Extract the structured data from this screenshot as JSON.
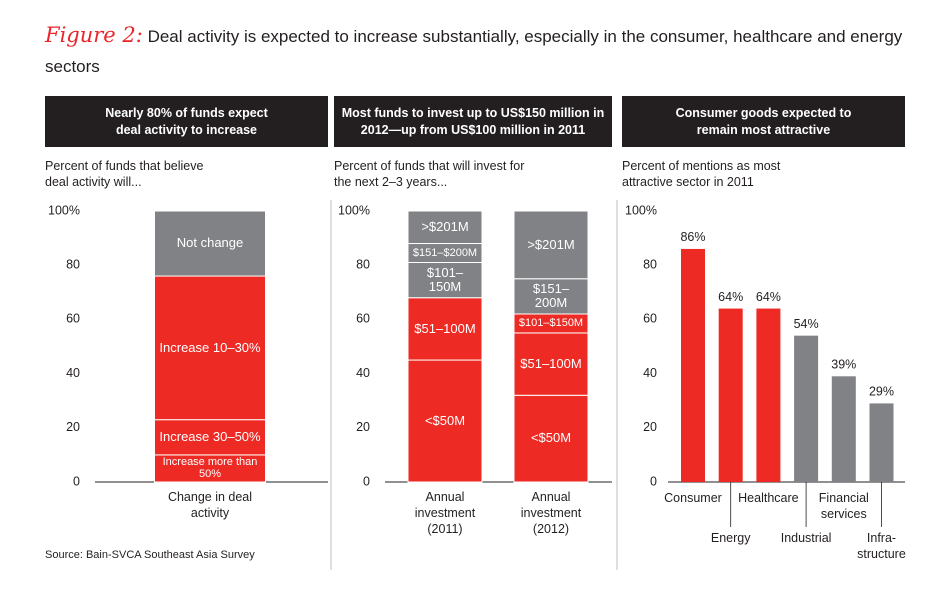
{
  "figure_label": "Figure 2:",
  "title": "Deal activity is expected to increase substantially, especially in the consumer, healthcare and energy sectors",
  "source": "Source: Bain-SVCA Southeast Asia Survey",
  "chart_data": [
    {
      "type": "stacked_bar",
      "title": "Nearly 80% of funds expect deal activity to increase",
      "subtitle": "Percent of funds that believe deal activity will...",
      "categories": [
        "Change in deal activity"
      ],
      "series": [
        {
          "name": "Increase more than 50%",
          "color": "#ee2a24",
          "values": [
            10
          ]
        },
        {
          "name": "Increase 30–50%",
          "color": "#ee2a24",
          "values": [
            13
          ]
        },
        {
          "name": "Increase 10–30%",
          "color": "#ee2a24",
          "values": [
            53
          ]
        },
        {
          "name": "Not change",
          "color": "#808285",
          "values": [
            24
          ]
        }
      ],
      "ylim": [
        0,
        100
      ],
      "yticks": [
        0,
        20,
        40,
        60,
        80,
        {
          "value": 100,
          "label": "100%"
        }
      ]
    },
    {
      "type": "stacked_bar",
      "title": "Most funds to invest up to US$150 million in 2012—up from US$100 million in 2011",
      "subtitle": "Percent of funds that will invest for the next 2–3 years...",
      "categories": [
        "Annual investment (2011)",
        "Annual investment (2012)"
      ],
      "series": [
        {
          "labels": [
            "<$50M",
            "<$50M"
          ],
          "colors": [
            "#ee2a24",
            "#ee2a24"
          ],
          "values": [
            45,
            32
          ]
        },
        {
          "labels": [
            "$51–100M",
            "$51–100M"
          ],
          "colors": [
            "#ee2a24",
            "#ee2a24"
          ],
          "values": [
            23,
            23
          ]
        },
        {
          "labels": [
            "$101–150M",
            "$101–$150M"
          ],
          "colors": [
            "#808285",
            "#ee2a24"
          ],
          "values": [
            13,
            7
          ]
        },
        {
          "labels": [
            "$151–$200M",
            "$151–200M"
          ],
          "colors": [
            "#808285",
            "#808285"
          ],
          "values": [
            7,
            13
          ]
        },
        {
          "labels": [
            ">$201M",
            ">$201M"
          ],
          "colors": [
            "#808285",
            "#808285"
          ],
          "values": [
            12,
            25
          ]
        }
      ],
      "ylim": [
        0,
        100
      ],
      "yticks": [
        0,
        20,
        40,
        60,
        80,
        {
          "value": 100,
          "label": "100%"
        }
      ]
    },
    {
      "type": "bar",
      "title": "Consumer goods expected to remain most attractive",
      "subtitle": "Percent of mentions as most attractive sector in 2011",
      "categories": [
        "Consumer",
        "Energy",
        "Healthcare",
        "Industrial",
        "Financial services",
        "Infra-structure"
      ],
      "values": [
        86,
        64,
        64,
        54,
        39,
        29
      ],
      "value_labels": [
        "86%",
        "64%",
        "64%",
        "54%",
        "39%",
        "29%"
      ],
      "colors": [
        "#ee2a24",
        "#ee2a24",
        "#ee2a24",
        "#808285",
        "#808285",
        "#808285"
      ],
      "ylim": [
        0,
        100
      ],
      "yticks": [
        0,
        20,
        40,
        60,
        80,
        {
          "value": 100,
          "label": "100%"
        }
      ]
    }
  ]
}
